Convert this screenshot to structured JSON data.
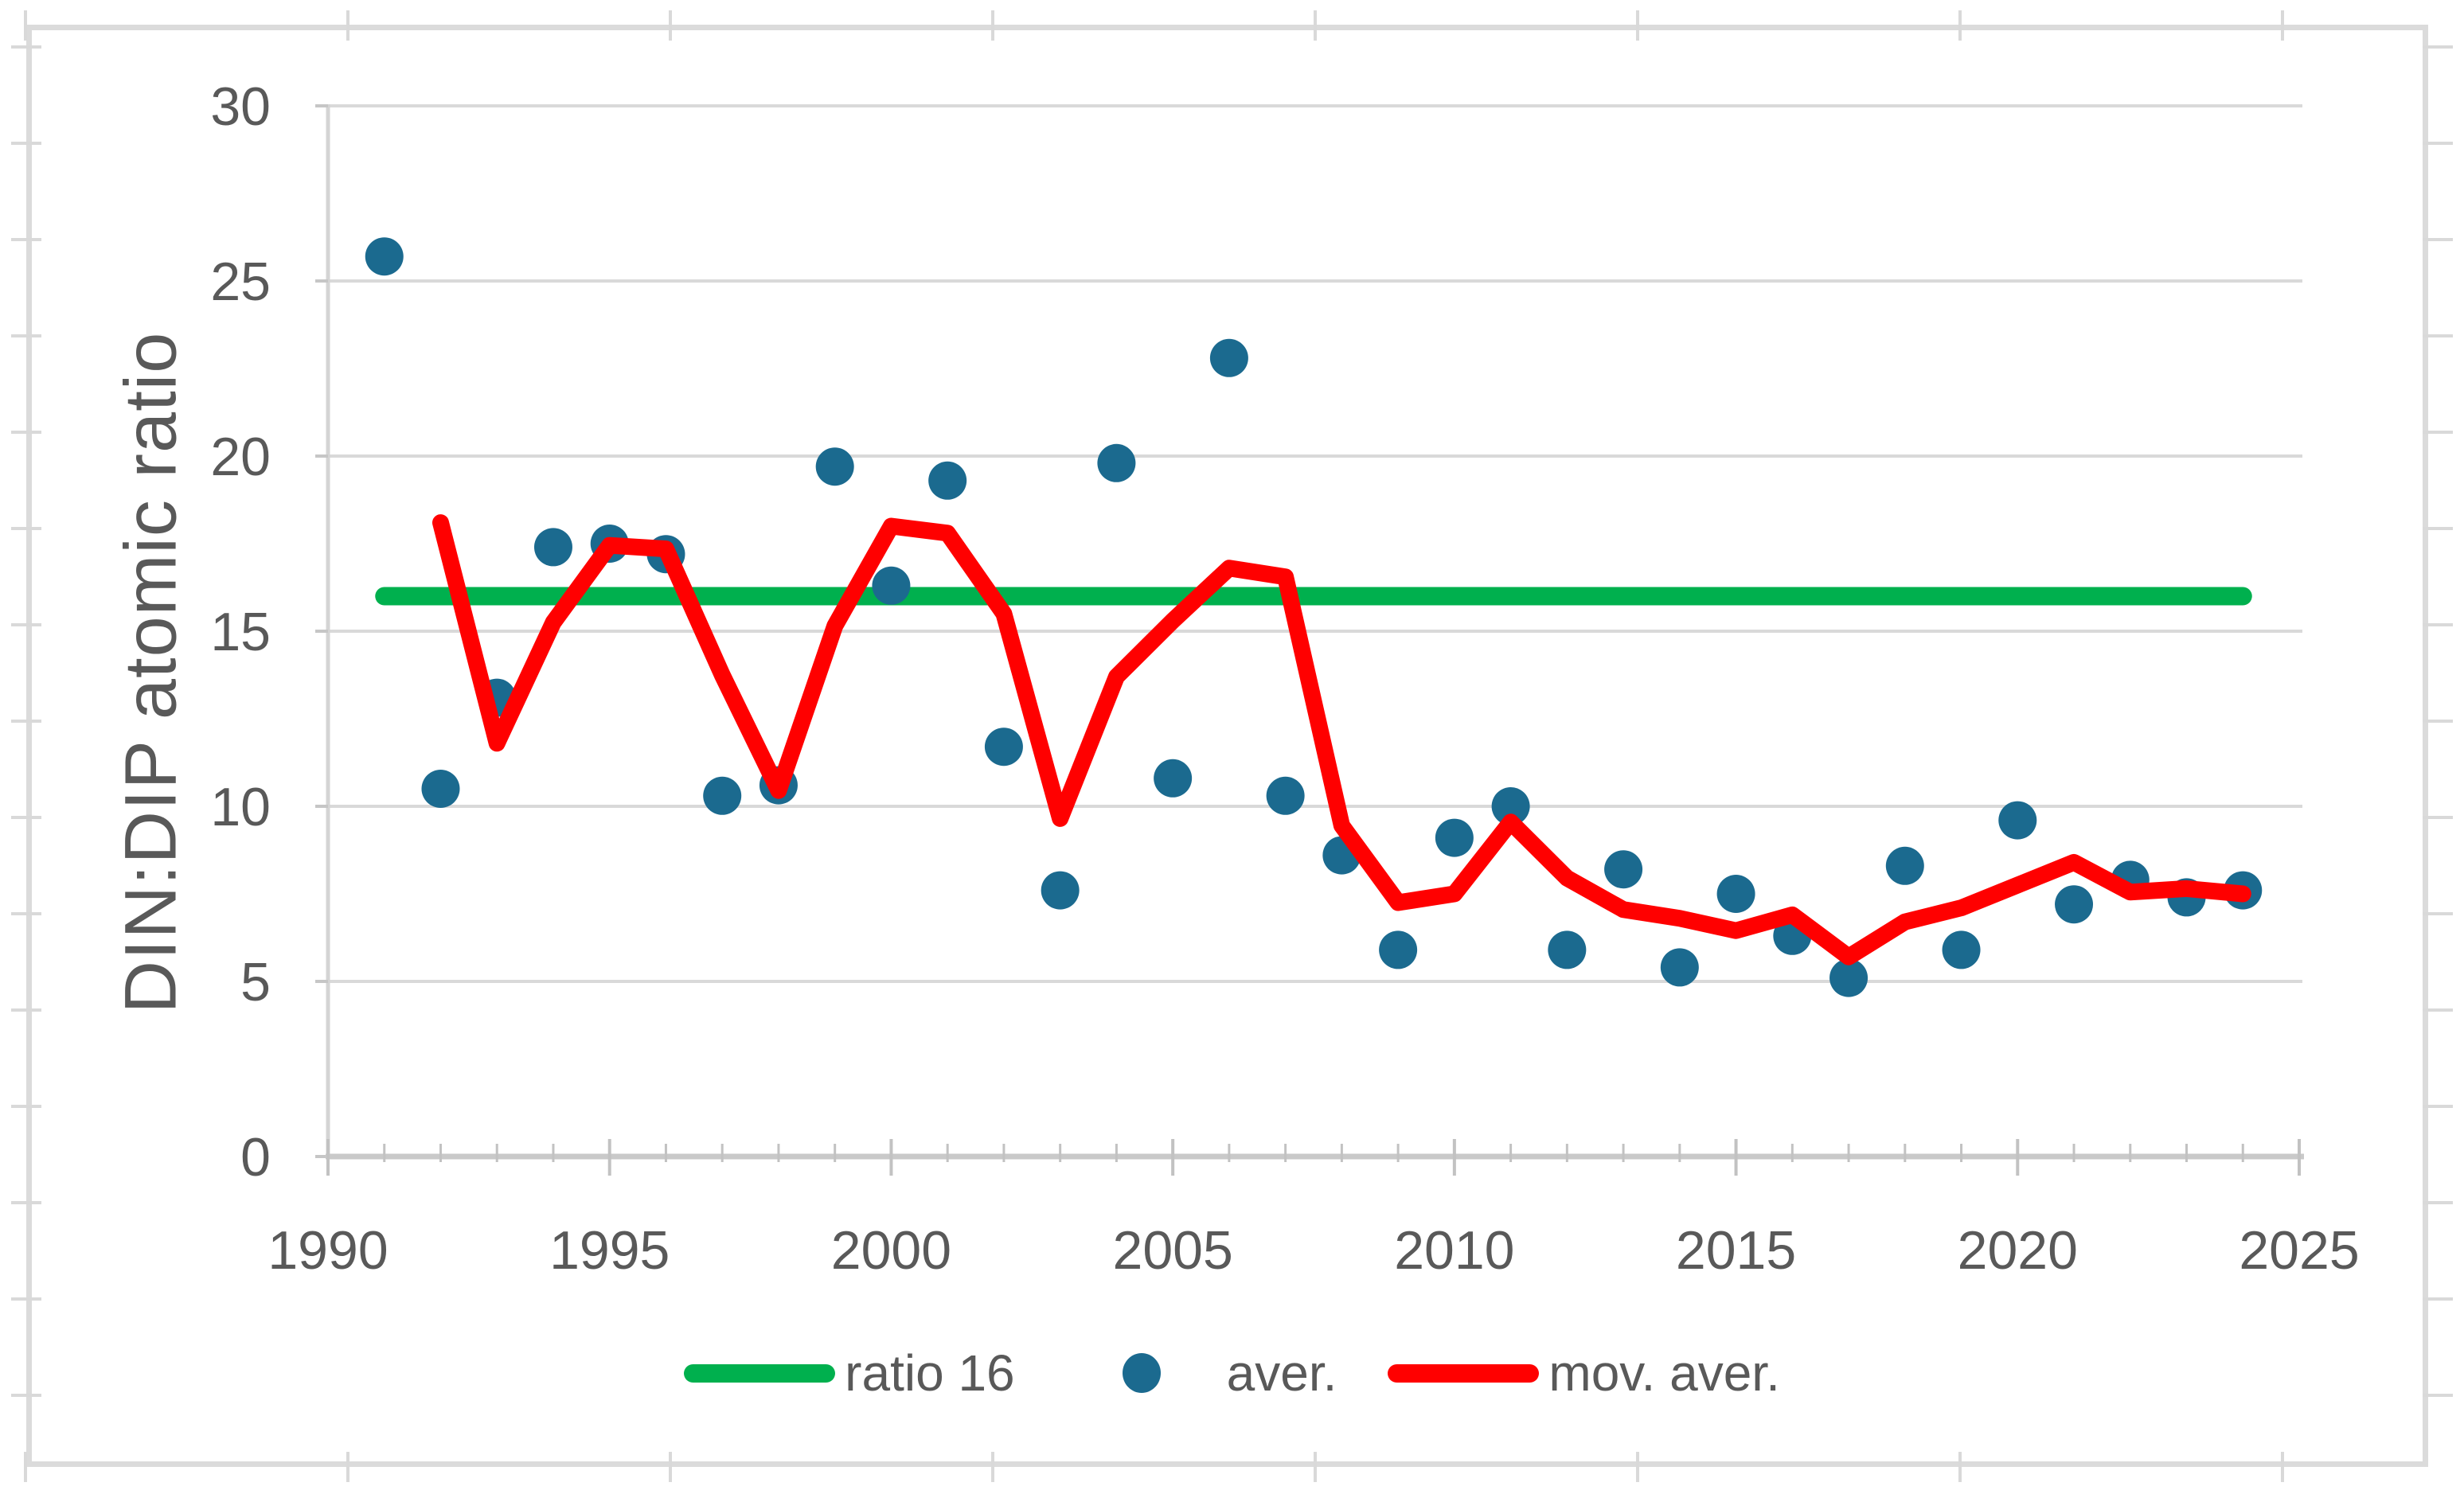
{
  "figure": {
    "y_axis_title": "DIN:DIP atomic ratio"
  },
  "legend": {
    "items": [
      {
        "id": "ratio16",
        "label": "ratio 16",
        "swatch": "line",
        "color": "#00B04E"
      },
      {
        "id": "aver",
        "label": "aver.",
        "swatch": "dot",
        "color": "#1b6a8f"
      },
      {
        "id": "mov_aver",
        "label": "mov. aver.",
        "swatch": "line",
        "color": "#FF0000"
      }
    ]
  },
  "chart_data": {
    "type": "scatter",
    "title": "",
    "xlabel": "",
    "ylabel": "DIN:DIP atomic ratio",
    "grid": true,
    "legend_position": "bottom",
    "x_axis": {
      "min": 1990,
      "max": 2025,
      "major_ticks": [
        1990,
        1995,
        2000,
        2005,
        2010,
        2015,
        2020,
        2025
      ],
      "minor_tick_step": 1
    },
    "y_axis": {
      "min": 0,
      "max": 30,
      "ticks": [
        0,
        5,
        10,
        15,
        20,
        25,
        30
      ]
    },
    "series": [
      {
        "name": "ratio 16",
        "type": "line",
        "color": "#00B04E",
        "x": [
          1991,
          2024
        ],
        "values": [
          16,
          16
        ]
      },
      {
        "name": "aver.",
        "type": "scatter",
        "color": "#1b6a8f",
        "x": [
          1991,
          1992,
          1993,
          1994,
          1995,
          1996,
          1997,
          1998,
          1999,
          2000,
          2001,
          2002,
          2003,
          2004,
          2005,
          2006,
          2007,
          2008,
          2009,
          2010,
          2011,
          2012,
          2013,
          2014,
          2015,
          2016,
          2017,
          2018,
          2019,
          2020,
          2021,
          2022,
          2023,
          2024
        ],
        "values": [
          25.7,
          10.5,
          13.1,
          17.4,
          17.5,
          17.2,
          10.3,
          10.6,
          19.7,
          16.3,
          19.3,
          11.7,
          7.6,
          19.8,
          10.8,
          22.8,
          10.3,
          8.6,
          5.9,
          9.1,
          10.0,
          5.9,
          8.2,
          5.4,
          7.5,
          6.3,
          5.1,
          8.3,
          5.9,
          9.6,
          7.2,
          7.9,
          7.4,
          7.6
        ]
      },
      {
        "name": "mov. aver.",
        "type": "line",
        "color": "#FF0000",
        "x": [
          1992,
          1993,
          1994,
          1995,
          1996,
          1997,
          1998,
          1999,
          2000,
          2001,
          2002,
          2003,
          2004,
          2005,
          2006,
          2007,
          2008,
          2009,
          2010,
          2011,
          2012,
          2013,
          2014,
          2015,
          2016,
          2017,
          2018,
          2019,
          2020,
          2021,
          2022,
          2023,
          2024
        ],
        "values": [
          18.1,
          11.8,
          15.25,
          17.45,
          17.35,
          13.75,
          10.45,
          15.15,
          18.0,
          17.8,
          15.5,
          9.65,
          13.7,
          15.3,
          16.8,
          16.55,
          9.45,
          7.25,
          7.5,
          9.55,
          7.95,
          7.05,
          6.8,
          6.45,
          6.9,
          5.7,
          6.7,
          7.1,
          7.75,
          8.4,
          7.55,
          7.65,
          7.5
        ]
      }
    ]
  }
}
